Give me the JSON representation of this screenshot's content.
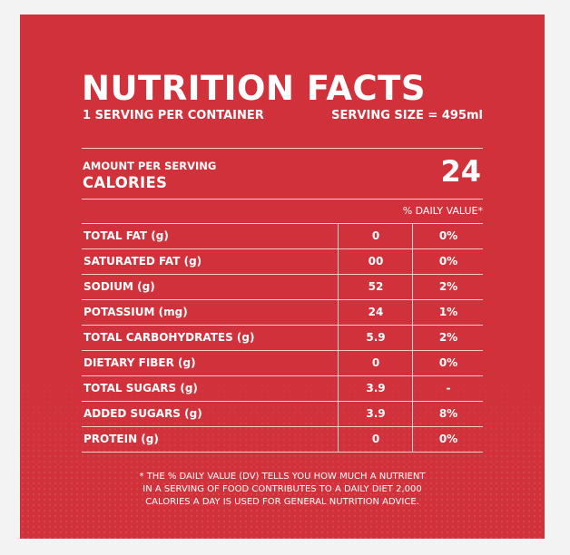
{
  "label": {
    "title": "NUTRITION FACTS",
    "servings_per_container": "1 SERVING PER CONTAINER",
    "serving_size": "SERVING SIZE = 495ml",
    "amount_per_serving": "AMOUNT PER SERVING",
    "calories_label": "CALORIES",
    "calories_value": "24",
    "daily_value_header": "% DAILY VALUE*",
    "rows": [
      {
        "name": "TOTAL FAT (g)",
        "amount": "0",
        "dv": "0%"
      },
      {
        "name": "SATURATED FAT (g)",
        "amount": "00",
        "dv": "0%"
      },
      {
        "name": "SODIUM (g)",
        "amount": "52",
        "dv": "2%"
      },
      {
        "name": "POTASSIUM (mg)",
        "amount": "24",
        "dv": "1%"
      },
      {
        "name": "TOTAL CARBOHYDRATES (g)",
        "amount": "5.9",
        "dv": "2%"
      },
      {
        "name": "DIETARY FIBER (g)",
        "amount": "0",
        "dv": "0%"
      },
      {
        "name": "TOTAL SUGARS (g)",
        "amount": "3.9",
        "dv": "-"
      },
      {
        "name": "ADDED SUGARS (g)",
        "amount": "3.9",
        "dv": "8%"
      },
      {
        "name": "PROTEIN (g)",
        "amount": "0",
        "dv": "0%"
      }
    ],
    "footnote": [
      "* THE % DAILY VALUE (DV) TELLS YOU HOW MUCH A NUTRIENT",
      "IN A SERVING OF FOOD CONTRIBUTES TO A DAILY DIET 2,000",
      "CALORIES A DAY IS USED FOR GENERAL NUTRITION ADVICE."
    ]
  },
  "colors": {
    "panel_background": "#d1313a",
    "page_background": "#f3f3f3",
    "text": "#ffffff"
  }
}
